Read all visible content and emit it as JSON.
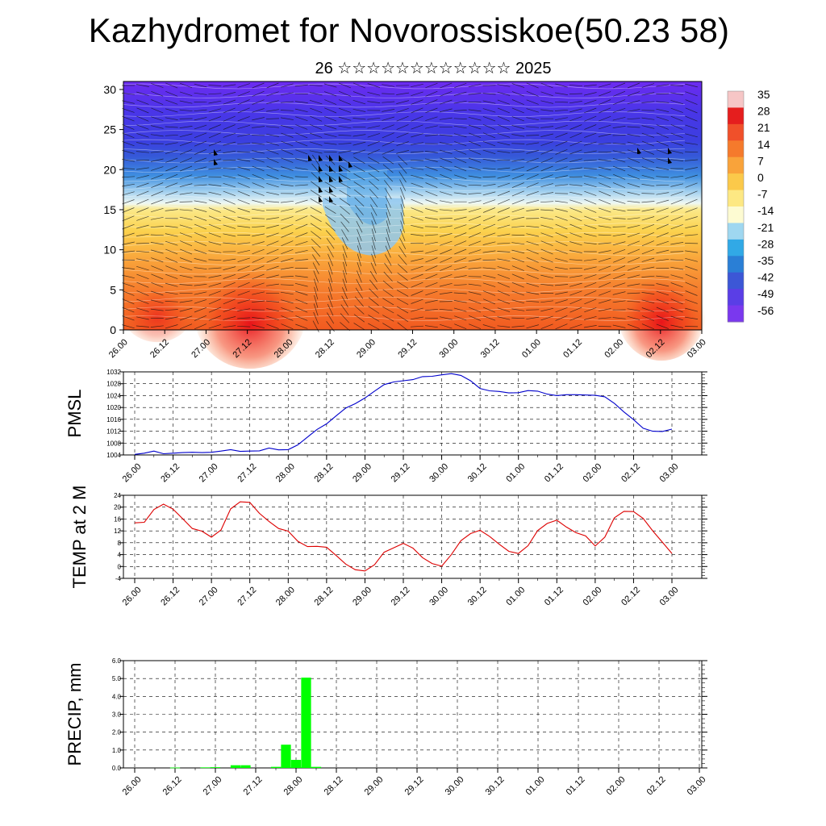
{
  "header": {
    "title": "Kazhydromet for Novorossiskoe(50.23 58)",
    "subtitle": "26 ☆☆☆☆☆☆☆☆☆☆☆☆ 2025"
  },
  "time_labels": [
    "26.00",
    "26.12",
    "27.00",
    "27.12",
    "28.00",
    "28.12",
    "29.00",
    "29.12",
    "30.00",
    "30.12",
    "01.00",
    "01.12",
    "02.00",
    "02.12",
    "03.00"
  ],
  "chart_data": [
    {
      "type": "heatmap",
      "name": "vertical-section",
      "yticks": [
        0,
        5,
        10,
        15,
        20,
        25,
        30
      ],
      "ylim": [
        0,
        31
      ],
      "colorbar": {
        "labels": [
          "35",
          "28",
          "21",
          "14",
          "7",
          "0",
          "-7",
          "-14",
          "-21",
          "-28",
          "-35",
          "-42",
          "-49",
          "-56"
        ],
        "colors": [
          "#f6c6c6",
          "#e51e1e",
          "#f0502a",
          "#f57a2c",
          "#f9a33a",
          "#fbc94a",
          "#fde883",
          "#fdfbd2",
          "#9fd7f0",
          "#31a9e6",
          "#2a7fd6",
          "#3c57d6",
          "#5a3ee6",
          "#7a38ee"
        ]
      }
    },
    {
      "type": "line",
      "name": "PMSL",
      "ylabel": "PMSL",
      "ylim": [
        1004,
        1032
      ],
      "yticks": [
        1004,
        1008,
        1012,
        1016,
        1020,
        1024,
        1028,
        1032
      ],
      "color": "#0000cc",
      "x": [
        0,
        0.5,
        1,
        1.5,
        2,
        2.5,
        3,
        3.5,
        4,
        4.5,
        5,
        5.5,
        6,
        6.5,
        7,
        7.5,
        8,
        8.5,
        9,
        9.5,
        10,
        10.5,
        11,
        11.5,
        12,
        12.5,
        13,
        13.5,
        14,
        14.5,
        15,
        15.5,
        16,
        16.5,
        17,
        17.5,
        18,
        18.5,
        19,
        19.5,
        20,
        20.5,
        21,
        21.5,
        22,
        22.5,
        23,
        23.5,
        24,
        24.5,
        25,
        25.5,
        26,
        26.5,
        27,
        27.5,
        28
      ],
      "values": [
        1004.2,
        1004.6,
        1005.3,
        1004.4,
        1004.6,
        1004.8,
        1004.9,
        1004.8,
        1004.9,
        1005.3,
        1005.8,
        1005.2,
        1005.3,
        1005.4,
        1006.3,
        1005.7,
        1005.8,
        1007.4,
        1010.0,
        1012.6,
        1014.5,
        1017.2,
        1019.8,
        1021.3,
        1023.2,
        1025.5,
        1027.7,
        1028.6,
        1029.0,
        1029.4,
        1030.4,
        1030.5,
        1031.0,
        1031.4,
        1030.8,
        1029.0,
        1026.4,
        1025.6,
        1025.4,
        1024.9,
        1025.0,
        1025.7,
        1025.5,
        1024.5,
        1024.0,
        1024.3,
        1024.3,
        1024.2,
        1024.1,
        1023.6,
        1021.4,
        1018.5,
        1015.9,
        1013.0,
        1012.0,
        1011.9,
        1012.7
      ]
    },
    {
      "type": "line",
      "name": "TEMP at 2 M",
      "ylabel": "TEMP at 2 M",
      "ylim": [
        -4,
        24
      ],
      "yticks": [
        -4,
        0,
        4,
        8,
        12,
        16,
        20,
        24
      ],
      "color": "#dd0000",
      "x": [
        0,
        0.5,
        1,
        1.5,
        2,
        2.5,
        3,
        3.5,
        4,
        4.5,
        5,
        5.5,
        6,
        6.5,
        7,
        7.5,
        8,
        8.5,
        9,
        9.5,
        10,
        10.5,
        11,
        11.5,
        12,
        12.5,
        13,
        13.5,
        14,
        14.5,
        15,
        15.5,
        16,
        16.5,
        17,
        17.5,
        18,
        18.5,
        19,
        19.5,
        20,
        20.5,
        21,
        21.5,
        22,
        22.5,
        23,
        23.5,
        24,
        24.5,
        25,
        25.5,
        26,
        26.5,
        27,
        27.5,
        28
      ],
      "values": [
        14.7,
        14.9,
        19.2,
        21.0,
        19.3,
        16.1,
        12.8,
        11.9,
        9.9,
        12.3,
        19.4,
        21.8,
        21.6,
        17.9,
        15.2,
        12.8,
        11.9,
        8.5,
        6.7,
        6.8,
        6.5,
        3.7,
        0.8,
        -1.1,
        -1.5,
        0.6,
        4.8,
        6.3,
        7.8,
        6.2,
        3.0,
        1.0,
        0.1,
        4.0,
        8.7,
        11.1,
        12.2,
        10.1,
        7.5,
        5.1,
        4.4,
        7.0,
        12.1,
        14.5,
        15.6,
        13.3,
        11.4,
        10.3,
        6.9,
        9.9,
        16.4,
        18.6,
        18.5,
        16.2,
        12.0,
        8.2,
        4.4
      ]
    },
    {
      "type": "bar",
      "name": "PRECIP, mm",
      "ylabel": "PRECIP, mm",
      "ylim": [
        0,
        6
      ],
      "ytick_labels": [
        "0.0",
        "1.0",
        "2.0",
        "3.0",
        "4.0",
        "5.0",
        "6.0"
      ],
      "color": "#00ff00",
      "x": [
        2,
        3.5,
        4,
        5,
        5.5,
        7,
        7.5,
        8,
        8.5,
        9
      ],
      "values": [
        0.02,
        0.03,
        0.04,
        0.15,
        0.15,
        0.06,
        1.3,
        0.45,
        5.05,
        0.06
      ]
    }
  ]
}
